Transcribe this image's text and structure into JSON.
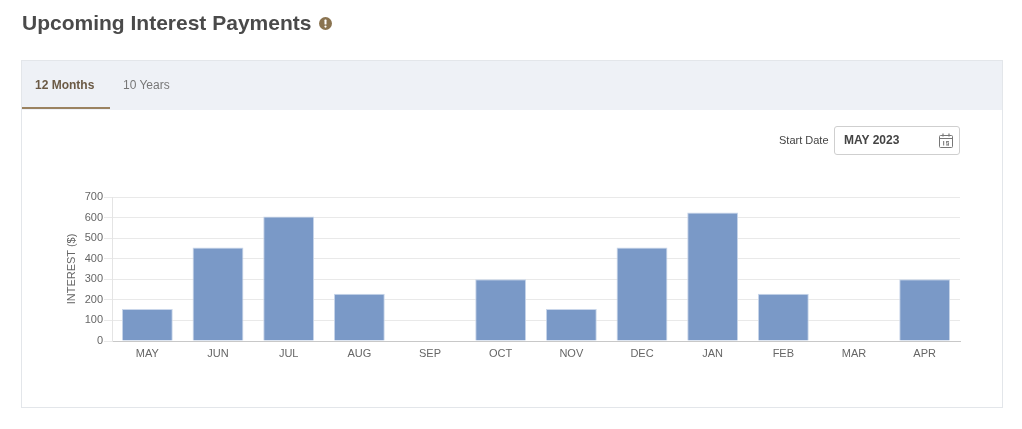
{
  "chart_data": {
    "type": "bar",
    "title": "Upcoming Interest Payments",
    "ylabel": "INTEREST ($)",
    "categories": [
      "MAY",
      "JUN",
      "JUL",
      "AUG",
      "SEP",
      "OCT",
      "NOV",
      "DEC",
      "JAN",
      "FEB",
      "MAR",
      "APR"
    ],
    "values": [
      155,
      455,
      605,
      230,
      0,
      300,
      155,
      455,
      625,
      230,
      0,
      300
    ],
    "color": "#7a99c7",
    "ylim": [
      0,
      700
    ],
    "yticks": [
      0,
      100,
      200,
      300,
      400,
      500,
      600,
      700
    ],
    "grid": "y",
    "annotations": [
      "12 Months",
      "10 Years",
      "Start Date",
      "MAY 2023"
    ]
  }
}
